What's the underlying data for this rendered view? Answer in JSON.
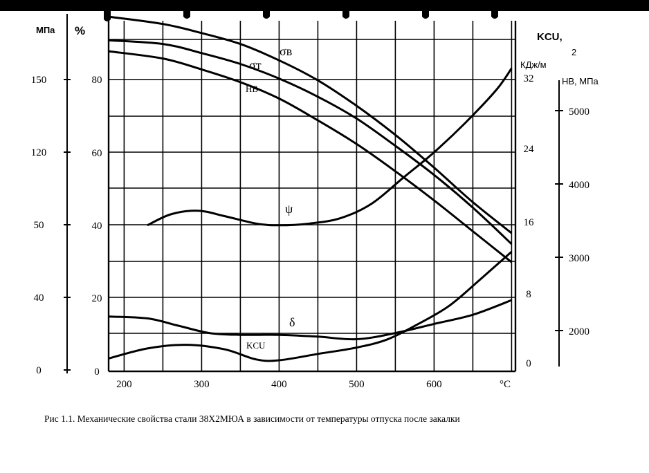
{
  "chart_data": {
    "type": "line",
    "caption": "Рис 1.1. Механические свойства стали 38Х2МЮА в зависимости от температуры отпуска после закалки",
    "x_ticks": [
      "200",
      "300",
      "400",
      "500",
      "600"
    ],
    "x_unit": "°С",
    "axes": {
      "mpa": {
        "label": "МПа",
        "ticks": [
          "0",
          "40",
          "50",
          "120",
          "150"
        ]
      },
      "percent": {
        "label": "%",
        "ticks": [
          "0",
          "20",
          "40",
          "60",
          "80"
        ]
      },
      "kcu": {
        "label": "KCU,",
        "unit": "КДж/м",
        "superscript": "2",
        "ticks": [
          "0",
          "8",
          "16",
          "24",
          "32"
        ]
      },
      "hb": {
        "label": "HB, МПа",
        "ticks": [
          "2000",
          "3000",
          "4000",
          "5000"
        ]
      }
    },
    "series": [
      {
        "name": "σв",
        "axis": "mpa",
        "x": [
          180,
          250,
          300,
          350,
          400,
          450,
          500,
          550,
          600,
          650,
          700
        ],
        "y": [
          175,
          171,
          166,
          160,
          151,
          140,
          126,
          110,
          92,
          73,
          56
        ]
      },
      {
        "name": "σт",
        "axis": "mpa",
        "x": [
          180,
          250,
          300,
          350,
          400,
          450,
          500,
          550,
          600,
          650,
          700
        ],
        "y": [
          162,
          160,
          155,
          149,
          141,
          131,
          119,
          104,
          88,
          70,
          50
        ]
      },
      {
        "name": "НВ",
        "axis": "mpa",
        "x": [
          180,
          250,
          300,
          350,
          400,
          450,
          500,
          550,
          600,
          650,
          700
        ],
        "y": [
          156,
          152,
          146,
          139,
          130,
          118,
          105,
          90,
          74,
          57,
          40
        ]
      },
      {
        "name": "ψ",
        "axis": "percent",
        "x": [
          230,
          260,
          295,
          330,
          370,
          400,
          440,
          480,
          520,
          560,
          600,
          640,
          680,
          700
        ],
        "y": [
          40,
          43,
          44,
          42.5,
          40.5,
          40,
          40.5,
          42,
          46,
          53,
          60,
          68,
          77,
          83
        ]
      },
      {
        "name": "δ",
        "axis": "percent",
        "x": [
          180,
          230,
          270,
          310,
          350,
          400,
          450,
          500,
          550,
          600,
          650,
          700
        ],
        "y": [
          15,
          14.5,
          12.5,
          10.5,
          10,
          10,
          9.5,
          8.8,
          10.5,
          13,
          15.5,
          19.5
        ]
      },
      {
        "name": "KCU",
        "axis": "kcu",
        "x": [
          180,
          230,
          280,
          330,
          370,
          400,
          450,
          500,
          540,
          580,
          620,
          660,
          700
        ],
        "y": [
          0.5,
          1.6,
          2.0,
          1.5,
          0.4,
          0.3,
          1.0,
          1.7,
          2.6,
          4.3,
          6.3,
          9.2,
          12.2
        ]
      }
    ]
  },
  "series_labels": {
    "sigma_b": "σв",
    "sigma_t": "σт",
    "hb": "НВ",
    "psi": "ψ",
    "delta": "δ",
    "kcu": "KCU"
  }
}
